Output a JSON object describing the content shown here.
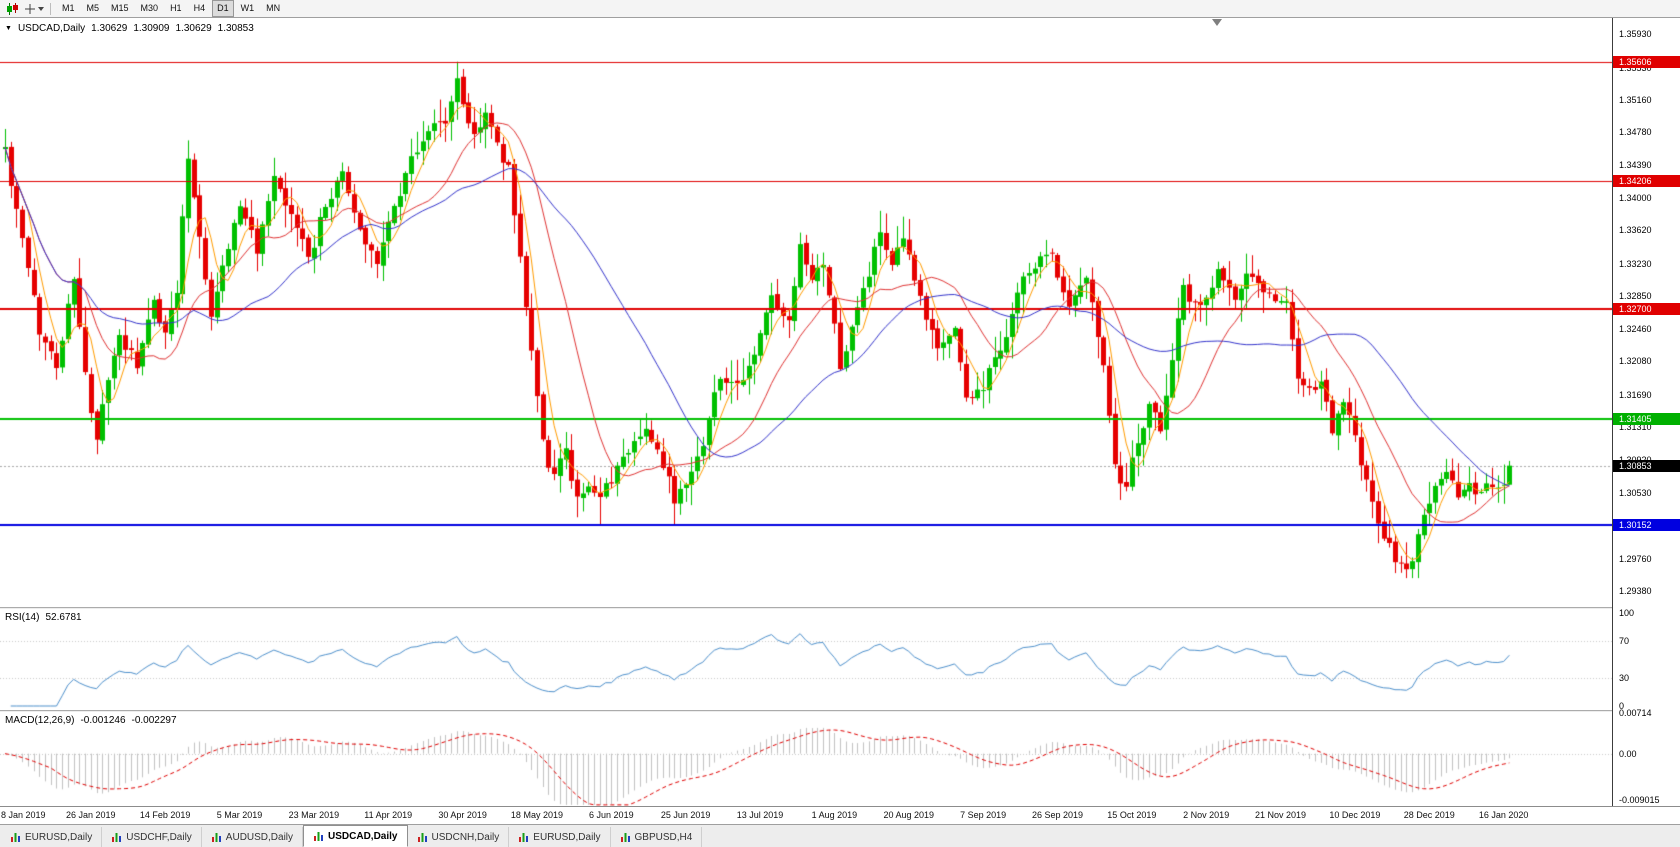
{
  "toolbar": {
    "timeframes": [
      "M1",
      "M5",
      "M15",
      "M30",
      "H1",
      "H4",
      "D1",
      "W1",
      "MN"
    ],
    "active_timeframe": "D1"
  },
  "main_chart": {
    "collapse_icon": "▼",
    "symbol_period": "USDCAD,Daily",
    "ohlc": {
      "open": "1.30629",
      "high": "1.30909",
      "low": "1.30629",
      "close": "1.30853"
    },
    "price_axis_labels": [
      "1.35930",
      "1.35530",
      "1.35160",
      "1.34780",
      "1.34390",
      "1.34000",
      "1.33620",
      "1.33230",
      "1.32850",
      "1.32460",
      "1.32080",
      "1.31690",
      "1.31310",
      "1.30920",
      "1.30530",
      "1.30140",
      "1.29760",
      "1.29380"
    ],
    "current_price_badge": {
      "text": "1.30853",
      "value": 1.30853,
      "bg": "#000000"
    },
    "level_badges": [
      {
        "text": "1.35606",
        "value": 1.35606,
        "bg": "#e00000"
      },
      {
        "text": "1.34206",
        "value": 1.34206,
        "bg": "#e00000"
      },
      {
        "text": "1.32700",
        "value": 1.327,
        "bg": "#e00000"
      },
      {
        "text": "1.31405",
        "value": 1.31405,
        "bg": "#00b000"
      },
      {
        "text": "1.30152",
        "value": 1.30152,
        "bg": "#0000e0"
      }
    ]
  },
  "rsi_panel": {
    "title": "RSI(14)",
    "value": "52.6781",
    "scale_labels": [
      "100",
      "70",
      "30",
      "0"
    ]
  },
  "macd_panel": {
    "title": "MACD(12,26,9)",
    "value_macd": "-0.001246",
    "value_signal": "-0.002297",
    "scale_labels": [
      "0.00714",
      "0.00",
      "-0.009015"
    ]
  },
  "tabs": [
    {
      "label": "EURUSD,Daily",
      "active": false
    },
    {
      "label": "USDCHF,Daily",
      "active": false
    },
    {
      "label": "AUDUSD,Daily",
      "active": false
    },
    {
      "label": "USDCAD,Daily",
      "active": true
    },
    {
      "label": "USDCNH,Daily",
      "active": false
    },
    {
      "label": "EURUSD,Daily",
      "active": false
    },
    {
      "label": "GBPUSD,H4",
      "active": false
    }
  ],
  "chart_data": {
    "type": "candlestick",
    "symbol": "USDCAD",
    "period": "Daily",
    "y_range": [
      1.2919,
      1.3612
    ],
    "num_candles": 264,
    "noise_seed": 42,
    "up_color": "#00c000",
    "down_color": "#e60000",
    "x_axis_labels": [
      {
        "text": "8 Jan 2019",
        "day": 2
      },
      {
        "text": "26 Jan 2019",
        "day": 15
      },
      {
        "text": "14 Feb 2019",
        "day": 28
      },
      {
        "text": "5 Mar 2019",
        "day": 41
      },
      {
        "text": "23 Mar 2019",
        "day": 54
      },
      {
        "text": "11 Apr 2019",
        "day": 67
      },
      {
        "text": "30 Apr 2019",
        "day": 80
      },
      {
        "text": "18 May 2019",
        "day": 93
      },
      {
        "text": "6 Jun 2019",
        "day": 106
      },
      {
        "text": "25 Jun 2019",
        "day": 119
      },
      {
        "text": "13 Jul 2019",
        "day": 132
      },
      {
        "text": "1 Aug 2019",
        "day": 145
      },
      {
        "text": "20 Aug 2019",
        "day": 158
      },
      {
        "text": "7 Sep 2019",
        "day": 171
      },
      {
        "text": "26 Sep 2019",
        "day": 184
      },
      {
        "text": "15 Oct 2019",
        "day": 197
      },
      {
        "text": "2 Nov 2019",
        "day": 210
      },
      {
        "text": "21 Nov 2019",
        "day": 223
      },
      {
        "text": "10 Dec 2019",
        "day": 236
      },
      {
        "text": "28 Dec 2019",
        "day": 249
      },
      {
        "text": "16 Jan 2020",
        "day": 262
      }
    ],
    "price_path_anchors": [
      [
        0,
        1.3458
      ],
      [
        3,
        1.3345
      ],
      [
        6,
        1.3238
      ],
      [
        9,
        1.321
      ],
      [
        12,
        1.331
      ],
      [
        14,
        1.3185
      ],
      [
        16,
        1.3115
      ],
      [
        18,
        1.318
      ],
      [
        20,
        1.324
      ],
      [
        23,
        1.32
      ],
      [
        26,
        1.327
      ],
      [
        28,
        1.324
      ],
      [
        30,
        1.33
      ],
      [
        32,
        1.3452
      ],
      [
        34,
        1.3365
      ],
      [
        36,
        1.327
      ],
      [
        38,
        1.3325
      ],
      [
        41,
        1.3395
      ],
      [
        44,
        1.334
      ],
      [
        47,
        1.341
      ],
      [
        50,
        1.337
      ],
      [
        53,
        1.333
      ],
      [
        56,
        1.3395
      ],
      [
        59,
        1.343
      ],
      [
        62,
        1.336
      ],
      [
        65,
        1.3335
      ],
      [
        68,
        1.339
      ],
      [
        71,
        1.3455
      ],
      [
        74,
        1.348
      ],
      [
        77,
        1.349
      ],
      [
        79,
        1.3545
      ],
      [
        80,
        1.351
      ],
      [
        82,
        1.3475
      ],
      [
        84,
        1.3505
      ],
      [
        86,
        1.346
      ],
      [
        88,
        1.3435
      ],
      [
        90,
        1.333
      ],
      [
        92,
        1.323
      ],
      [
        94,
        1.3115
      ],
      [
        96,
        1.307
      ],
      [
        98,
        1.3105
      ],
      [
        100,
        1.3045
      ],
      [
        102,
        1.307
      ],
      [
        104,
        1.304
      ],
      [
        106,
        1.306
      ],
      [
        109,
        1.3105
      ],
      [
        112,
        1.314
      ],
      [
        115,
        1.308
      ],
      [
        117,
        1.3045
      ],
      [
        119,
        1.3075
      ],
      [
        122,
        1.3125
      ],
      [
        125,
        1.32
      ],
      [
        128,
        1.317
      ],
      [
        131,
        1.322
      ],
      [
        134,
        1.328
      ],
      [
        137,
        1.3245
      ],
      [
        139,
        1.333
      ],
      [
        141,
        1.329
      ],
      [
        143,
        1.331
      ],
      [
        146,
        1.32
      ],
      [
        148,
        1.3245
      ],
      [
        150,
        1.329
      ],
      [
        153,
        1.336
      ],
      [
        155,
        1.331
      ],
      [
        157,
        1.334
      ],
      [
        160,
        1.327
      ],
      [
        163,
        1.3215
      ],
      [
        166,
        1.325
      ],
      [
        168,
        1.316
      ],
      [
        171,
        1.318
      ],
      [
        174,
        1.322
      ],
      [
        177,
        1.329
      ],
      [
        180,
        1.332
      ],
      [
        183,
        1.3335
      ],
      [
        186,
        1.328
      ],
      [
        189,
        1.332
      ],
      [
        192,
        1.321
      ],
      [
        194,
        1.3105
      ],
      [
        196,
        1.306
      ],
      [
        198,
        1.312
      ],
      [
        200,
        1.316
      ],
      [
        202,
        1.313
      ],
      [
        204,
        1.322
      ],
      [
        206,
        1.329
      ],
      [
        209,
        1.327
      ],
      [
        212,
        1.332
      ],
      [
        215,
        1.328
      ],
      [
        218,
        1.331
      ],
      [
        221,
        1.3285
      ],
      [
        224,
        1.327
      ],
      [
        226,
        1.319
      ],
      [
        228,
        1.3165
      ],
      [
        230,
        1.318
      ],
      [
        232,
        1.312
      ],
      [
        234,
        1.3165
      ],
      [
        236,
        1.311
      ],
      [
        238,
        1.306
      ],
      [
        240,
        1.301
      ],
      [
        242,
        1.2985
      ],
      [
        244,
        1.2965
      ],
      [
        246,
        1.2975
      ],
      [
        248,
        1.302
      ],
      [
        250,
        1.3065
      ],
      [
        252,
        1.308
      ],
      [
        254,
        1.305
      ],
      [
        256,
        1.3065
      ],
      [
        258,
        1.305
      ],
      [
        260,
        1.306
      ],
      [
        262,
        1.3075
      ],
      [
        263,
        1.3085
      ]
    ],
    "last_candle": {
      "open": 1.30629,
      "high": 1.30909,
      "low": 1.30629,
      "close": 1.30853
    },
    "spike_high": {
      "index": 79,
      "price": 1.35606
    },
    "spike_low": {
      "index": 246,
      "price": 1.2953,
      "zone_start": 236
    },
    "support_touches": [
      104,
      117
    ],
    "high_marks": [
      [
        32,
        1.3468
      ]
    ],
    "moving_averages": [
      {
        "period": 5,
        "color": "#ff9c00"
      },
      {
        "period": 15,
        "color": "#e03232"
      },
      {
        "period": 34,
        "color": "#3333cc"
      }
    ],
    "horizontal_lines": [
      {
        "price": 1.35606,
        "color": "#e00000",
        "width": 1
      },
      {
        "price": 1.34206,
        "color": "#e00000",
        "width": 1
      },
      {
        "price": 1.327,
        "color": "#e00000",
        "width": 2
      },
      {
        "price": 1.31405,
        "color": "#00c000",
        "width": 2
      },
      {
        "price": 1.30152,
        "color": "#0000e0",
        "width": 2
      }
    ],
    "current_price_line": {
      "price": 1.30853,
      "color": "#a8a8a8"
    },
    "rsi": {
      "period": 14,
      "color": "#4d90cc",
      "levels": [
        70,
        30
      ],
      "range": [
        0,
        100
      ]
    },
    "macd": {
      "fast": 12,
      "slow": 26,
      "signal": 9,
      "histogram_color": "#c2c2c2",
      "signal_color": "#e00000",
      "range": [
        -0.0093,
        0.0074
      ]
    }
  }
}
